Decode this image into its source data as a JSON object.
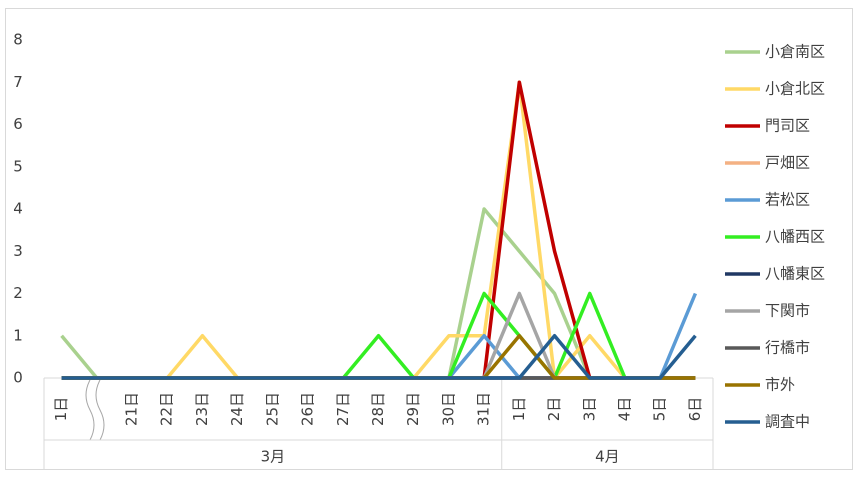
{
  "chart_data": {
    "type": "line",
    "groups": [
      {
        "label": "3月",
        "categories": [
          "1日",
          null,
          "21日",
          "22日",
          "23日",
          "24日",
          "25日",
          "26日",
          "27日",
          "28日",
          "29日",
          "30日",
          "31日"
        ]
      },
      {
        "label": "4月",
        "categories": [
          "1日",
          "2日",
          "3日",
          "4日",
          "5日",
          "6日"
        ]
      }
    ],
    "ylim": [
      0,
      8
    ],
    "yticks": [
      0,
      1,
      2,
      3,
      4,
      5,
      6,
      7,
      8
    ],
    "series": [
      {
        "name": "小倉南区",
        "color": "#a9d18e",
        "values": [
          1,
          0,
          0,
          0,
          0,
          0,
          0,
          0,
          0,
          0,
          0,
          0,
          4,
          3,
          2,
          0,
          0,
          0,
          0
        ]
      },
      {
        "name": "小倉北区",
        "color": "#ffd966",
        "values": [
          0,
          0,
          0,
          0,
          1,
          0,
          0,
          0,
          0,
          0,
          0,
          1,
          1,
          7,
          0,
          1,
          0,
          0,
          0
        ]
      },
      {
        "name": "門司区",
        "color": "#c00000",
        "values": [
          0,
          0,
          0,
          0,
          0,
          0,
          0,
          0,
          0,
          0,
          0,
          0,
          0,
          7,
          3,
          0,
          0,
          0,
          0
        ]
      },
      {
        "name": "戸畑区",
        "color": "#f4b183",
        "values": [
          0,
          0,
          0,
          0,
          0,
          0,
          0,
          0,
          0,
          0,
          0,
          0,
          0,
          0,
          0,
          0,
          0,
          0,
          0
        ]
      },
      {
        "name": "若松区",
        "color": "#5b9bd5",
        "values": [
          0,
          0,
          0,
          0,
          0,
          0,
          0,
          0,
          0,
          0,
          0,
          0,
          1,
          0,
          0,
          0,
          0,
          0,
          2
        ]
      },
      {
        "name": "八幡西区",
        "color": "#33ee22",
        "values": [
          0,
          0,
          0,
          0,
          0,
          0,
          0,
          0,
          0,
          1,
          0,
          0,
          2,
          1,
          0,
          2,
          0,
          0,
          0
        ]
      },
      {
        "name": "八幡東区",
        "color": "#203864",
        "values": [
          0,
          0,
          0,
          0,
          0,
          0,
          0,
          0,
          0,
          0,
          0,
          0,
          0,
          0,
          0,
          0,
          0,
          0,
          0
        ]
      },
      {
        "name": "下関市",
        "color": "#a5a5a5",
        "values": [
          0,
          0,
          0,
          0,
          0,
          0,
          0,
          0,
          0,
          0,
          0,
          0,
          0,
          2,
          0,
          0,
          0,
          0,
          0
        ]
      },
      {
        "name": "行橋市",
        "color": "#595959",
        "values": [
          0,
          0,
          0,
          0,
          0,
          0,
          0,
          0,
          0,
          0,
          0,
          0,
          0,
          0,
          0,
          0,
          0,
          0,
          0
        ]
      },
      {
        "name": "市外",
        "color": "#997300",
        "values": [
          0,
          0,
          0,
          0,
          0,
          0,
          0,
          0,
          0,
          0,
          0,
          0,
          0,
          1,
          0,
          0,
          0,
          0,
          0
        ]
      },
      {
        "name": "調査中",
        "color": "#255e91",
        "values": [
          0,
          0,
          0,
          0,
          0,
          0,
          0,
          0,
          0,
          0,
          0,
          0,
          0,
          0,
          1,
          0,
          0,
          0,
          1
        ]
      }
    ]
  }
}
